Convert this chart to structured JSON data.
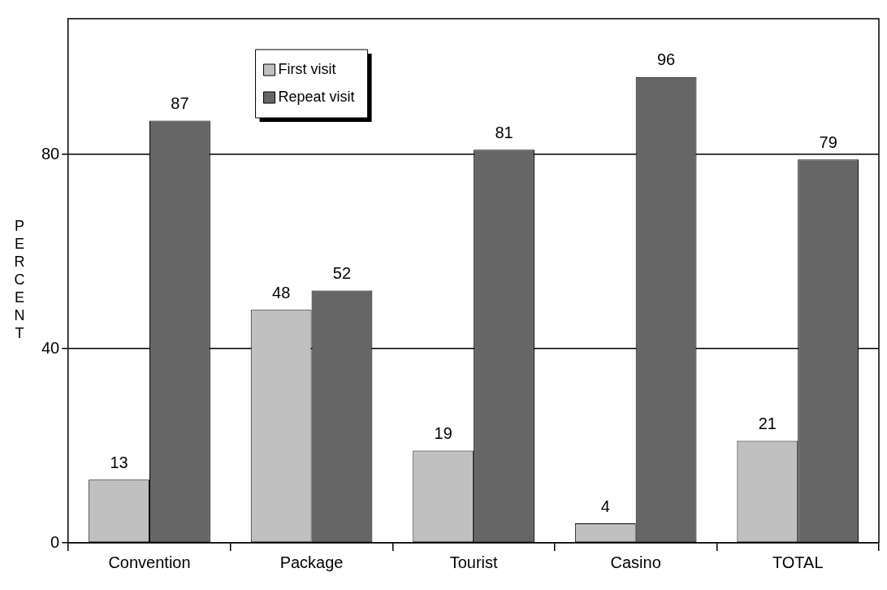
{
  "chart_data": {
    "type": "bar",
    "ylabel": "PERCENT",
    "categories": [
      "Convention",
      "Package",
      "Tourist",
      "Casino",
      "TOTAL"
    ],
    "series": [
      {
        "name": "First visit",
        "color": "#c0c0c0",
        "values": [
          13,
          48,
          19,
          4,
          21
        ]
      },
      {
        "name": "Repeat visit",
        "color": "#666666",
        "values": [
          87,
          52,
          81,
          96,
          79
        ]
      }
    ],
    "ylim": [
      0,
      108
    ],
    "yticks": [
      0,
      40,
      80
    ],
    "grid": "y",
    "legend": "top",
    "data_labels": true
  }
}
